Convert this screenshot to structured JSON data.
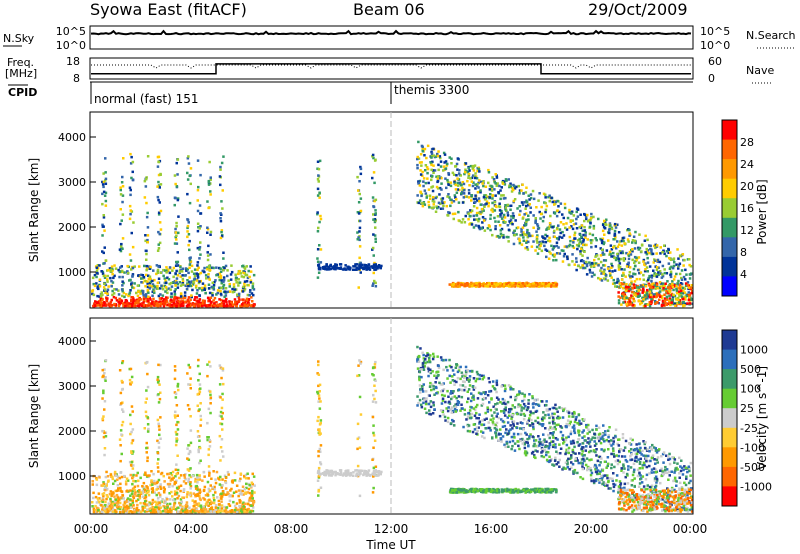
{
  "header": {
    "station": "Syowa East (fitACF)",
    "beam": "Beam 06",
    "date": "29/Oct/2009"
  },
  "status_panels": {
    "nsky_label": "N.Sky",
    "nsky_ticks": [
      "10^5",
      "10^0"
    ],
    "nsearch_label": "N.Search",
    "nsearch_ticks": [
      "10^5",
      "10^0"
    ],
    "freq_label_1": "Freq.",
    "freq_label_2": "[MHz]",
    "freq_ticks": [
      "18",
      "8"
    ],
    "nave_label": "Nave",
    "nave_ticks": [
      "60",
      "0"
    ],
    "cpid_label": "CPID",
    "cpid_segments": [
      {
        "label": "normal (fast) 151",
        "start_hour": 0,
        "end_hour": 12
      },
      {
        "label": "themis 3300",
        "start_hour": 12,
        "end_hour": 24
      }
    ],
    "freq_steps": [
      {
        "start_hour": 0,
        "end_hour": 5,
        "value": 10.5
      },
      {
        "start_hour": 5,
        "end_hour": 18,
        "value": 15.2
      },
      {
        "start_hour": 18,
        "end_hour": 24,
        "value": 10.5
      }
    ],
    "nave_level": 40
  },
  "chart_data": [
    {
      "type": "heatmap",
      "name": "power",
      "ylabel": "Slant Range [km]",
      "ylim": [
        180,
        4500
      ],
      "y_ticks": [
        "4000",
        "3000",
        "2000",
        "1000"
      ],
      "colorbar_label": "Power [dB]",
      "colorbar_ticks": [
        "28",
        "24",
        "20",
        "16",
        "12",
        "8",
        "4"
      ],
      "colorbar_colors": [
        "#ff0000",
        "#ff6600",
        "#ff9900",
        "#ffcc00",
        "#99cc33",
        "#339966",
        "#3366aa",
        "#003399",
        "#0000ff"
      ]
    },
    {
      "type": "heatmap",
      "name": "velocity",
      "ylabel": "Slant Range [km]",
      "ylim": [
        180,
        4500
      ],
      "y_ticks": [
        "4000",
        "3000",
        "2000",
        "1000"
      ],
      "colorbar_label": "Velocity [m s^-1]",
      "colorbar_ticks": [
        "1000",
        "500",
        "100",
        "25",
        "-25",
        "-100",
        "-500",
        "-1000"
      ],
      "colorbar_colors": [
        "#1f3a93",
        "#2c6fbb",
        "#3c9a6a",
        "#66cc33",
        "#cccccc",
        "#ffcc33",
        "#ff9900",
        "#ff6600",
        "#ff0000"
      ]
    }
  ],
  "x_axis": {
    "label": "Time UT",
    "ticks": [
      "00:00",
      "04:00",
      "08:00",
      "12:00",
      "16:00",
      "20:00",
      "00:00"
    ],
    "xlim_hours": [
      0,
      24
    ]
  }
}
